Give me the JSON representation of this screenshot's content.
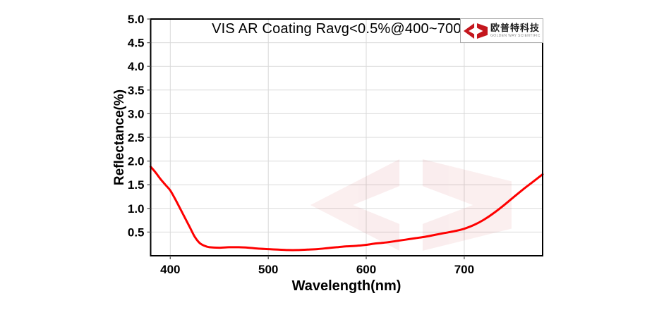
{
  "chart": {
    "title": "VIS AR Coating Ravg<0.5%@400~700nm",
    "xlabel": "Wavelength(nm)",
    "ylabel": "Reflectance(%)"
  },
  "logo": {
    "name_cn": "欧普特科技",
    "name_en": "GOLDEN WAY SCIENTIFIC"
  },
  "colors": {
    "curve_red": "#fe0000",
    "logo_red": "#c4161d",
    "gridline": "#d9d9d9",
    "axis_border": "#000000"
  },
  "chart_data": {
    "type": "line",
    "title": "VIS AR Coating Ravg<0.5%@400~700nm",
    "xlabel": "Wavelength(nm)",
    "ylabel": "Reflectance(%)",
    "xlim": [
      380,
      780
    ],
    "ylim": [
      0,
      5
    ],
    "x_ticks": [
      400,
      500,
      600,
      700
    ],
    "y_ticks": [
      0.5,
      1.0,
      1.5,
      2.0,
      2.5,
      3.0,
      3.5,
      4.0,
      4.5,
      5.0
    ],
    "grid": true,
    "legend": false,
    "series": [
      {
        "name": "Reflectance",
        "color": "#fe0000",
        "x": [
          380,
          385,
          390,
          395,
          400,
          405,
          410,
          415,
          420,
          425,
          430,
          435,
          440,
          450,
          460,
          470,
          480,
          490,
          500,
          510,
          520,
          530,
          540,
          550,
          560,
          570,
          580,
          590,
          600,
          610,
          620,
          630,
          640,
          650,
          660,
          670,
          680,
          690,
          700,
          710,
          720,
          730,
          740,
          750,
          760,
          770,
          780
        ],
        "values": [
          1.88,
          1.76,
          1.62,
          1.5,
          1.38,
          1.2,
          1.0,
          0.8,
          0.6,
          0.4,
          0.27,
          0.21,
          0.18,
          0.17,
          0.18,
          0.18,
          0.17,
          0.15,
          0.14,
          0.13,
          0.12,
          0.12,
          0.13,
          0.14,
          0.16,
          0.18,
          0.2,
          0.21,
          0.23,
          0.26,
          0.28,
          0.31,
          0.34,
          0.37,
          0.4,
          0.44,
          0.48,
          0.52,
          0.57,
          0.65,
          0.76,
          0.9,
          1.06,
          1.23,
          1.4,
          1.56,
          1.72
        ]
      }
    ]
  }
}
